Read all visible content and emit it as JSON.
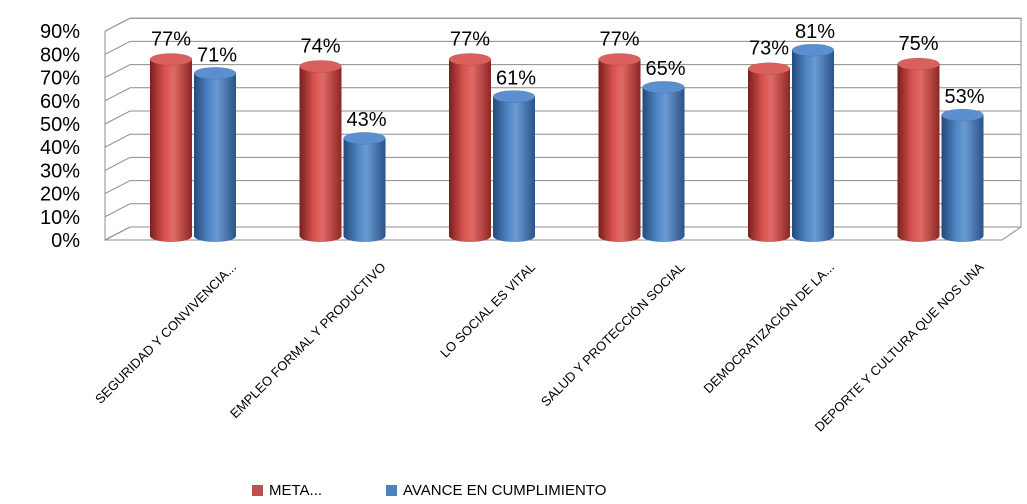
{
  "chart_data": {
    "type": "bar",
    "categories": [
      "SEGURIDAD Y CONVIVENCIA...",
      "EMPLEO FORMAL Y PRODUCTIVO",
      "LO SOCIAL ES VITAL",
      "SALUD Y PROTECCIÓN SOCIAL",
      "DEMOCRATIZACIÓN DE LA...",
      "DEPORTE Y CULTURA QUE NOS UNA"
    ],
    "series": [
      {
        "name": "META...",
        "values": [
          77,
          74,
          77,
          77,
          73,
          75
        ],
        "labels": [
          "77%",
          "74%",
          "77%",
          "77%",
          "73%",
          "75%"
        ],
        "color": "#c0504d"
      },
      {
        "name": "AVANCE EN CUMPLIMIENTO",
        "values": [
          71,
          43,
          61,
          65,
          81,
          53
        ],
        "labels": [
          "71%",
          "43%",
          "61%",
          "65%",
          "81%",
          "53%"
        ],
        "color": "#4f81bd"
      }
    ],
    "yticks": [
      "0%",
      "10%",
      "20%",
      "30%",
      "40%",
      "50%",
      "60%",
      "70%",
      "80%",
      "90%"
    ],
    "ylim": [
      0,
      90
    ],
    "grid": true,
    "legend_position": "bottom",
    "style": "3d-cylinder"
  }
}
